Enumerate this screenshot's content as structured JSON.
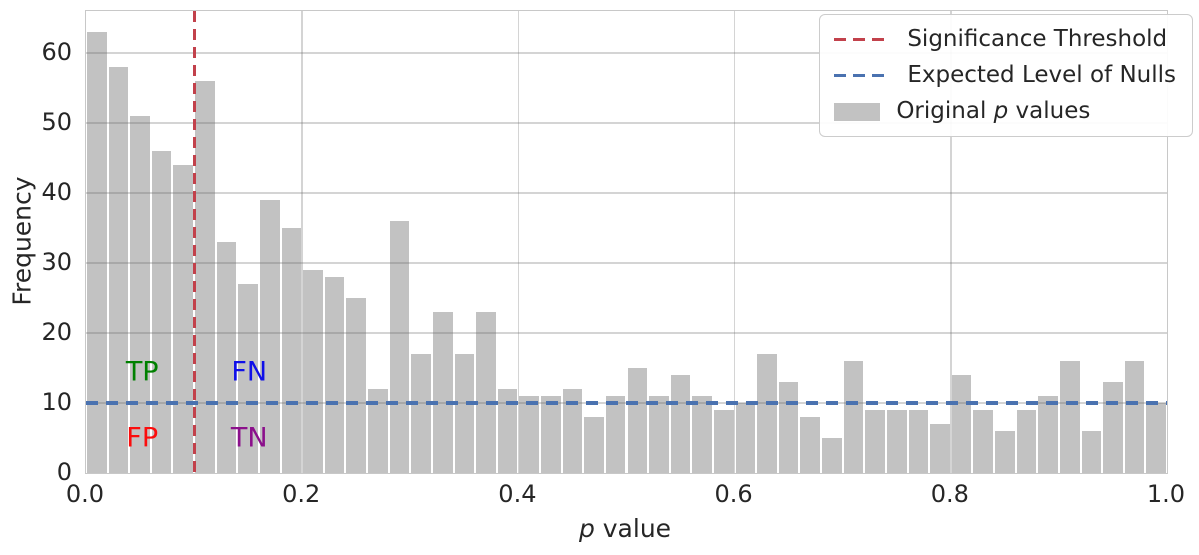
{
  "figure": {
    "background": "#ffffff",
    "text_color": "#262626",
    "ylabel": "Frequency",
    "xlabel_italic": "p",
    "xlabel_rest": " value"
  },
  "chart_data": {
    "type": "bar",
    "title": "",
    "xlabel": "p value",
    "ylabel": "Frequency",
    "grid": true,
    "bin_start": 0.0,
    "bin_width": 0.02,
    "x_bin_starts": [
      0.0,
      0.02,
      0.04,
      0.06,
      0.08,
      0.1,
      0.12,
      0.14,
      0.16,
      0.18,
      0.2,
      0.22,
      0.24,
      0.26,
      0.28,
      0.3,
      0.32,
      0.34,
      0.36,
      0.38,
      0.4,
      0.42,
      0.44,
      0.46,
      0.48,
      0.5,
      0.52,
      0.54,
      0.56,
      0.58,
      0.6,
      0.62,
      0.64,
      0.66,
      0.68,
      0.7,
      0.72,
      0.74,
      0.76,
      0.78,
      0.8,
      0.82,
      0.84,
      0.86,
      0.88,
      0.9,
      0.92,
      0.94,
      0.96,
      0.98
    ],
    "values": [
      63,
      58,
      51,
      46,
      44,
      56,
      33,
      27,
      39,
      35,
      29,
      28,
      25,
      12,
      36,
      17,
      23,
      17,
      23,
      12,
      11,
      11,
      12,
      8,
      11,
      15,
      11,
      14,
      11,
      9,
      10,
      17,
      13,
      8,
      5,
      16,
      9,
      9,
      9,
      7,
      14,
      9,
      6,
      9,
      11,
      16,
      6,
      13,
      16,
      10
    ],
    "total_count": 1000,
    "xlim": [
      0.0,
      1.0
    ],
    "ylim": [
      0,
      66
    ],
    "yticks": [
      0,
      10,
      20,
      30,
      40,
      50,
      60
    ],
    "ytick_labels": [
      "0",
      "10",
      "20",
      "30",
      "40",
      "50",
      "60"
    ],
    "xticks": [
      0.0,
      0.2,
      0.4,
      0.6,
      0.8,
      1.0
    ],
    "xtick_labels": [
      "0.0",
      "0.2",
      "0.4",
      "0.6",
      "0.8",
      "1.0"
    ],
    "x_gridlines": [
      0.2,
      0.4,
      0.6,
      0.8
    ],
    "bar_color": "#c2c2c2",
    "bar_edge_color": "#ffffff",
    "significance_threshold": {
      "x": 0.1,
      "color": "#c2414b",
      "style": "dashed",
      "label": "Significance Threshold"
    },
    "expected_level_of_nulls": {
      "y": 10,
      "color": "#4a72b0",
      "style": "dashed",
      "label": "Expected Level of Nulls"
    },
    "annotations": [
      {
        "label": "TP",
        "x": 0.052,
        "y": 14.5,
        "color": "#008000"
      },
      {
        "label": "FN",
        "x": 0.151,
        "y": 14.5,
        "color": "#0f0fe8"
      },
      {
        "label": "FP",
        "x": 0.052,
        "y": 5.0,
        "color": "#fb0d0d"
      },
      {
        "label": "TN",
        "x": 0.151,
        "y": 5.0,
        "color": "#8b0f8b"
      }
    ],
    "legend": {
      "position": "upper right",
      "items": [
        {
          "type": "line-dashed",
          "color": "#c2414b",
          "label": "Significance Threshold"
        },
        {
          "type": "line-dashed",
          "color": "#4a72b0",
          "label": "Expected Level of Nulls"
        },
        {
          "type": "patch",
          "color": "#c2c2c2",
          "label_pre": "Original ",
          "label_italic": "p",
          "label_post": " values"
        }
      ]
    }
  }
}
